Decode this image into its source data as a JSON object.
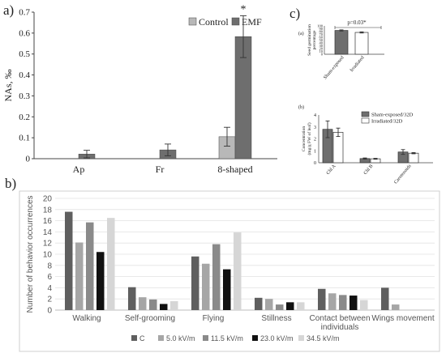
{
  "panel_labels": {
    "a": "a)",
    "b": "b)",
    "c": "c)",
    "ca": "(a)",
    "cb": "(b)"
  },
  "chart_data": [
    {
      "id": "a",
      "type": "bar",
      "categories": [
        "Ap",
        "Fr",
        "8-shaped"
      ],
      "ylabel": "NAs, ‰",
      "ylim": [
        0,
        0.7
      ],
      "yticks": [
        0,
        0.1,
        0.2,
        0.3,
        0.4,
        0.5,
        0.6,
        0.7
      ],
      "legend_position": "top-right",
      "annotation": "*",
      "series": [
        {
          "name": "Control",
          "color": "#b8b8b8",
          "values": [
            0,
            0,
            0.105
          ],
          "errors": [
            0,
            0,
            0.045
          ]
        },
        {
          "name": "EMF",
          "color": "#6e6e6e",
          "values": [
            0.022,
            0.042,
            0.583
          ],
          "errors": [
            0.018,
            0.028,
            0.1
          ]
        }
      ]
    },
    {
      "id": "b",
      "type": "bar",
      "categories": [
        "Walking",
        "Self-grooming",
        "Flying",
        "Stillness",
        "Contact between individuals",
        "Wings movement"
      ],
      "ylabel": "Number of behavior occurrences",
      "ylim": [
        0,
        20
      ],
      "yticks": [
        0,
        2,
        4,
        6,
        8,
        10,
        12,
        14,
        16,
        18,
        20
      ],
      "grid": true,
      "legend_position": "bottom",
      "series": [
        {
          "name": "C",
          "color": "#5f5f5f",
          "values": [
            17.6,
            4.1,
            9.6,
            2.2,
            3.8,
            4.0
          ]
        },
        {
          "name": "5.0 kV/m",
          "color": "#a6a6a6",
          "values": [
            12.1,
            2.3,
            8.3,
            2.0,
            3.0,
            1.0
          ]
        },
        {
          "name": "11.5 kV/m",
          "color": "#8a8a8a",
          "values": [
            15.7,
            1.9,
            11.8,
            1.0,
            2.7,
            0
          ]
        },
        {
          "name": "23.0 kV/m",
          "color": "#111111",
          "values": [
            10.4,
            1.1,
            7.3,
            1.4,
            2.6,
            0
          ]
        },
        {
          "name": "34.5 kV/m",
          "color": "#d6d6d6",
          "values": [
            16.5,
            1.6,
            13.9,
            1.4,
            1.8,
            0
          ]
        }
      ]
    },
    {
      "id": "c-a",
      "type": "bar",
      "categories": [
        "Sham-exposed",
        "Irradiated"
      ],
      "ylabel": "Seed germination percentage",
      "ylim": [
        0,
        100
      ],
      "yticks": [
        0,
        10,
        20,
        30,
        40,
        50,
        60,
        70,
        80,
        90,
        100
      ],
      "annotation": "p=0.03*",
      "values": [
        84,
        77
      ],
      "errors": [
        2,
        2
      ],
      "colors": [
        "#6e6e6e",
        "#ffffff"
      ]
    },
    {
      "id": "c-b",
      "type": "bar",
      "categories": [
        "Chl A",
        "Chl B",
        "Carotenoids"
      ],
      "ylabel": "Concentration (mg/g FW of leaf)",
      "ylim": [
        0,
        4
      ],
      "yticks": [
        0,
        1,
        2,
        3,
        4
      ],
      "legend_position": "top-right",
      "series": [
        {
          "name": "Sham-exposed/32D",
          "color": "#6e6e6e",
          "values": [
            2.8,
            0.35,
            0.9
          ],
          "errors": [
            0.7,
            0.05,
            0.2
          ]
        },
        {
          "name": "Irradiated/32D",
          "color": "#ffffff",
          "values": [
            2.55,
            0.33,
            0.8
          ],
          "errors": [
            0.35,
            0.04,
            0.05
          ]
        }
      ]
    }
  ]
}
